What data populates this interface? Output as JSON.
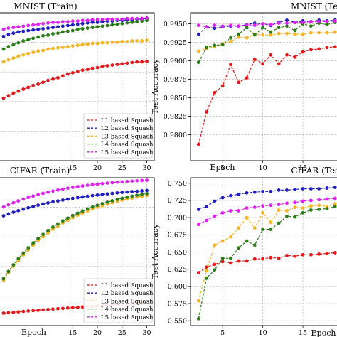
{
  "legend": [
    "L1 based Squash",
    "L2 based Squash",
    "L3 based Squash",
    "L4 based Squash",
    "L5 based Squash"
  ],
  "colors": [
    "#e41a1c",
    "#1f1fbf",
    "#f5b423",
    "#2a7d19",
    "#dd22ee"
  ],
  "chart_data": [
    {
      "type": "line",
      "title": "MNIST (Train)",
      "xlabel": "",
      "ylabel": "",
      "xlim": [
        0,
        31.5
      ],
      "ylim": [
        0.976,
        0.9992
      ],
      "xticks": [
        15,
        20,
        25,
        30
      ],
      "yticks": [],
      "grid": true,
      "legend_loc": "lower-right",
      "x": [
        1,
        2,
        3,
        4,
        5,
        6,
        7,
        8,
        9,
        10,
        11,
        12,
        13,
        14,
        15,
        16,
        17,
        18,
        19,
        20,
        21,
        22,
        23,
        24,
        25,
        26,
        27,
        28,
        29,
        30
      ],
      "series": [
        {
          "name": "L1 based Squash",
          "values": [
            0.9858,
            0.9862,
            0.9866,
            0.9869,
            0.9872,
            0.9875,
            0.9878,
            0.988,
            0.9883,
            0.9886,
            0.9888,
            0.989,
            0.9893,
            0.9896,
            0.9898,
            0.99,
            0.9902,
            0.9903,
            0.9905,
            0.9906,
            0.9908,
            0.9909,
            0.991,
            0.9911,
            0.9912,
            0.9913,
            0.9914,
            0.9915,
            0.9915,
            0.9916
          ]
        },
        {
          "name": "L2 based Squash",
          "values": [
            0.9955,
            0.9958,
            0.996,
            0.9962,
            0.9963,
            0.9964,
            0.9965,
            0.9966,
            0.9967,
            0.9968,
            0.9969,
            0.997,
            0.9971,
            0.9972,
            0.9973,
            0.9974,
            0.9975,
            0.9976,
            0.9977,
            0.9977,
            0.9978,
            0.9979,
            0.9979,
            0.998,
            0.998,
            0.9981,
            0.9981,
            0.9982,
            0.9982,
            0.9983
          ]
        },
        {
          "name": "L3 based Squash",
          "values": [
            0.9915,
            0.9918,
            0.9921,
            0.9924,
            0.9926,
            0.9928,
            0.993,
            0.9932,
            0.9933,
            0.9935,
            0.9936,
            0.9937,
            0.9938,
            0.9939,
            0.994,
            0.9941,
            0.9942,
            0.9943,
            0.9944,
            0.9944,
            0.9945,
            0.9945,
            0.9946,
            0.9946,
            0.9947,
            0.9947,
            0.9948,
            0.9948,
            0.9948,
            0.9949
          ]
        },
        {
          "name": "L4 based Squash",
          "values": [
            0.9935,
            0.9939,
            0.9942,
            0.9945,
            0.9948,
            0.995,
            0.9952,
            0.9954,
            0.9956,
            0.9957,
            0.9959,
            0.996,
            0.9962,
            0.9963,
            0.9964,
            0.9966,
            0.9967,
            0.9968,
            0.9969,
            0.997,
            0.9971,
            0.9972,
            0.9973,
            0.9974,
            0.9975,
            0.9976,
            0.9977,
            0.9978,
            0.9979,
            0.998
          ]
        },
        {
          "name": "L5 based Squash",
          "values": [
            0.9966,
            0.9968,
            0.9969,
            0.997,
            0.9971,
            0.9972,
            0.9973,
            0.9974,
            0.9975,
            0.9976,
            0.9977,
            0.9977,
            0.9978,
            0.9978,
            0.9979,
            0.9979,
            0.998,
            0.998,
            0.9981,
            0.9981,
            0.9981,
            0.9982,
            0.9982,
            0.9982,
            0.9982,
            0.9983,
            0.9983,
            0.9983,
            0.9983,
            0.9984
          ]
        }
      ]
    },
    {
      "type": "line",
      "title": "MNIST (Test)",
      "xlabel": "Epoch",
      "ylabel": "Test Accuracy",
      "xlim": [
        1,
        19.6
      ],
      "ylim": [
        0.9765,
        0.9965
      ],
      "xticks": [
        5,
        10,
        15
      ],
      "yticks": [
        0.98,
        0.9825,
        0.985,
        0.9875,
        0.99,
        0.9925,
        0.995
      ],
      "grid": true,
      "x": [
        2,
        3,
        4,
        5,
        6,
        7,
        8,
        9,
        10,
        11,
        12,
        13,
        14,
        15,
        16,
        17,
        18,
        19
      ],
      "series": [
        {
          "name": "L1 based Squash",
          "values": [
            0.9787,
            0.9831,
            0.9857,
            0.9866,
            0.9895,
            0.9871,
            0.9877,
            0.9902,
            0.9896,
            0.9908,
            0.9896,
            0.9908,
            0.9905,
            0.9912,
            0.9915,
            0.9916,
            0.9918,
            0.9919
          ]
        },
        {
          "name": "L2 based Squash",
          "values": [
            0.9936,
            0.9946,
            0.9944,
            0.9946,
            0.9947,
            0.9947,
            0.9949,
            0.9951,
            0.995,
            0.9948,
            0.9952,
            0.9955,
            0.9952,
            0.9954,
            0.9953,
            0.9955,
            0.9954,
            0.9955
          ]
        },
        {
          "name": "L3 based Squash",
          "values": [
            0.9913,
            0.9917,
            0.9919,
            0.9923,
            0.9926,
            0.9932,
            0.9931,
            0.9936,
            0.9935,
            0.9935,
            0.9937,
            0.9937,
            0.9936,
            0.9936,
            0.9938,
            0.9938,
            0.9938,
            0.9939
          ]
        },
        {
          "name": "L4 based Squash",
          "values": [
            0.9898,
            0.9918,
            0.9921,
            0.9922,
            0.9931,
            0.9936,
            0.9945,
            0.9935,
            0.9945,
            0.9939,
            0.9945,
            0.9947,
            0.9941,
            0.995,
            0.9947,
            0.9951,
            0.9949,
            0.9952
          ]
        },
        {
          "name": "L5 based Squash",
          "values": [
            0.9948,
            0.9946,
            0.9948,
            0.9947,
            0.9948,
            0.9947,
            0.9949,
            0.9948,
            0.995,
            0.9949,
            0.9951,
            0.9951,
            0.9952,
            0.9952,
            0.9953,
            0.9953,
            0.9953,
            0.9954
          ]
        }
      ]
    },
    {
      "type": "line",
      "title": "CIFAR (Train)",
      "xlabel": "Epoch",
      "ylabel": "",
      "xlim": [
        0,
        31.5
      ],
      "ylim": [
        0.598,
        0.8
      ],
      "xticks": [
        15,
        20,
        25,
        30
      ],
      "yticks": [],
      "grid": true,
      "legend_loc": "lower-right",
      "x": [
        1,
        2,
        3,
        4,
        5,
        6,
        7,
        8,
        9,
        10,
        11,
        12,
        13,
        14,
        15,
        16,
        17,
        18,
        19,
        20,
        21,
        22,
        23,
        24,
        25,
        26,
        27,
        28,
        29,
        30
      ],
      "series": [
        {
          "name": "L1 based Squash",
          "values": [
            0.615,
            0.6156,
            0.6162,
            0.6168,
            0.6174,
            0.618,
            0.6185,
            0.619,
            0.6195,
            0.62,
            0.6205,
            0.621,
            0.6215,
            0.622,
            0.6225,
            0.623,
            0.6235,
            0.624,
            0.6245,
            0.625,
            0.6254,
            0.6258,
            0.6262,
            0.6266,
            0.627,
            0.6274,
            0.6278,
            0.6282,
            0.6286,
            0.629
          ]
        },
        {
          "name": "L2 based Squash",
          "values": [
            0.748,
            0.7505,
            0.7528,
            0.755,
            0.757,
            0.759,
            0.7608,
            0.7625,
            0.7641,
            0.7656,
            0.767,
            0.7683,
            0.7695,
            0.7707,
            0.7718,
            0.7728,
            0.7738,
            0.7747,
            0.7756,
            0.7764,
            0.7772,
            0.7779,
            0.7786,
            0.7793,
            0.7799,
            0.7805,
            0.781,
            0.7815,
            0.782,
            0.7825
          ]
        },
        {
          "name": "L3 based Squash",
          "values": [
            0.66,
            0.67,
            0.679,
            0.687,
            0.6945,
            0.7015,
            0.708,
            0.714,
            0.7195,
            0.7247,
            0.7295,
            0.734,
            0.7382,
            0.742,
            0.7455,
            0.7488,
            0.7518,
            0.7546,
            0.7572,
            0.7596,
            0.7618,
            0.7639,
            0.7658,
            0.7676,
            0.7693,
            0.7708,
            0.7722,
            0.7735,
            0.7747,
            0.7758
          ]
        },
        {
          "name": "L4 based Squash",
          "values": [
            0.662,
            0.672,
            0.681,
            0.6895,
            0.6972,
            0.7043,
            0.711,
            0.717,
            0.7226,
            0.7278,
            0.7326,
            0.737,
            0.7411,
            0.7449,
            0.7484,
            0.7516,
            0.7546,
            0.7574,
            0.76,
            0.7624,
            0.7646,
            0.7666,
            0.7685,
            0.7703,
            0.7719,
            0.7734,
            0.7748,
            0.7761,
            0.7773,
            0.7784
          ]
        },
        {
          "name": "L5 based Squash",
          "values": [
            0.76,
            0.763,
            0.7658,
            0.7684,
            0.7708,
            0.773,
            0.775,
            0.7769,
            0.7787,
            0.7803,
            0.7818,
            0.7832,
            0.7845,
            0.7857,
            0.7868,
            0.7878,
            0.7888,
            0.7897,
            0.7905,
            0.7913,
            0.792,
            0.7927,
            0.7933,
            0.7939,
            0.7944,
            0.7949,
            0.7954,
            0.7958,
            0.7962,
            0.7966
          ]
        }
      ]
    },
    {
      "type": "line",
      "title": "CIFAR (Test)",
      "xlabel": "Epoch",
      "ylabel": "Test Accuracy",
      "xlim": [
        1,
        19.6
      ],
      "ylim": [
        0.543,
        0.758
      ],
      "xticks": [
        5,
        10,
        15
      ],
      "yticks": [
        0.55,
        0.575,
        0.6,
        0.625,
        0.65,
        0.675,
        0.7,
        0.725,
        0.75
      ],
      "grid": true,
      "x": [
        2,
        3,
        4,
        5,
        6,
        7,
        8,
        9,
        10,
        11,
        12,
        13,
        14,
        15,
        16,
        17,
        18,
        19
      ],
      "series": [
        {
          "name": "L1 based Squash",
          "values": [
            0.62,
            0.628,
            0.632,
            0.636,
            0.634,
            0.637,
            0.637,
            0.64,
            0.64,
            0.642,
            0.641,
            0.645,
            0.644,
            0.646,
            0.646,
            0.647,
            0.648,
            0.649
          ]
        },
        {
          "name": "L2 based Squash",
          "values": [
            0.712,
            0.716,
            0.724,
            0.729,
            0.732,
            0.734,
            0.736,
            0.737,
            0.738,
            0.738,
            0.74,
            0.74,
            0.741,
            0.742,
            0.742,
            0.742,
            0.743,
            0.744
          ]
        },
        {
          "name": "L3 based Squash",
          "values": [
            0.579,
            0.623,
            0.66,
            0.666,
            0.672,
            0.685,
            0.7,
            0.685,
            0.707,
            0.693,
            0.711,
            0.71,
            0.715,
            0.714,
            0.717,
            0.718,
            0.716,
            0.72
          ]
        },
        {
          "name": "L4 based Squash",
          "values": [
            0.553,
            0.612,
            0.624,
            0.641,
            0.641,
            0.656,
            0.666,
            0.66,
            0.683,
            0.683,
            0.692,
            0.702,
            0.701,
            0.707,
            0.711,
            0.712,
            0.713,
            0.716
          ]
        },
        {
          "name": "L5 based Squash",
          "values": [
            0.69,
            0.696,
            0.702,
            0.707,
            0.71,
            0.71,
            0.714,
            0.715,
            0.717,
            0.718,
            0.719,
            0.721,
            0.722,
            0.724,
            0.725,
            0.726,
            0.727,
            0.728
          ]
        }
      ]
    }
  ]
}
